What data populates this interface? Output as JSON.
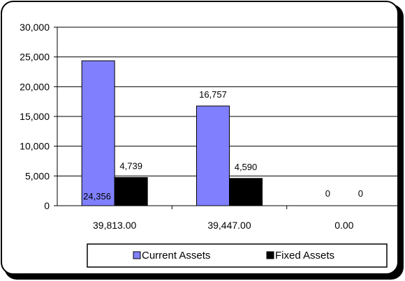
{
  "colors": {
    "current_assets": "#8080FF",
    "fixed_assets": "#000000",
    "frame": "#000000",
    "background": "#FFFFFF"
  },
  "chart_data": {
    "type": "bar",
    "categories": [
      "39,813.00",
      "39,447.00",
      "0.00"
    ],
    "series": [
      {
        "name": "Current Assets",
        "values": [
          24356,
          16757,
          0
        ],
        "labels": [
          "24,356",
          "16,757",
          "0"
        ]
      },
      {
        "name": "Fixed Assets",
        "values": [
          4739,
          4590,
          0
        ],
        "labels": [
          "4,739",
          "4,590",
          "0"
        ]
      }
    ],
    "title": "",
    "xlabel": "",
    "ylabel": "",
    "ylim": [
      0,
      30000
    ],
    "yticks": [
      0,
      5000,
      10000,
      15000,
      20000,
      25000,
      30000
    ],
    "ytick_labels": [
      "0",
      "5,000",
      "10,000",
      "15,000",
      "20,000",
      "25,000",
      "30,000"
    ],
    "grid": true,
    "legend_position": "bottom"
  }
}
